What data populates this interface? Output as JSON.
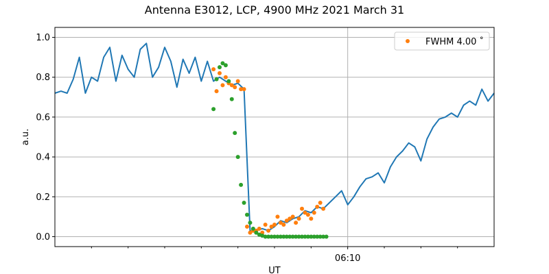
{
  "chart_data": {
    "type": "line",
    "title": "Antenna E3012, LCP, 4900 MHz 2021 March 31",
    "xlabel": "UT",
    "ylabel": "a.u.",
    "xlim": [
      "06:02:00",
      "06:14:00"
    ],
    "ylim": [
      -0.05,
      1.05
    ],
    "x_major_ticks": [
      {
        "value": "06:10:00",
        "label": "06:10"
      }
    ],
    "x_minor_ticks": [
      "06:03:00",
      "06:04:00",
      "06:05:00",
      "06:06:00",
      "06:07:00",
      "06:08:00",
      "06:09:00",
      "06:11:00",
      "06:12:00",
      "06:13:00"
    ],
    "y_ticks": [
      0.0,
      0.2,
      0.4,
      0.6,
      0.8,
      1.0
    ],
    "y_tick_labels": [
      "0.0",
      "0.2",
      "0.4",
      "0.6",
      "0.8",
      "1.0"
    ],
    "grid": "on (horizontal at y ticks, vertical at major x tick)",
    "legend": {
      "placement": "top-right",
      "entries": [
        {
          "label": "FWHM 4.00 ˚",
          "color": "#ff7f0e",
          "marker": "dot"
        }
      ]
    },
    "series": [
      {
        "style": "line",
        "color": "#1f77b4",
        "x": [
          "06:02:00",
          "06:02:10",
          "06:02:20",
          "06:02:30",
          "06:02:40",
          "06:02:50",
          "06:03:00",
          "06:03:10",
          "06:03:20",
          "06:03:30",
          "06:03:40",
          "06:03:50",
          "06:04:00",
          "06:04:10",
          "06:04:20",
          "06:04:30",
          "06:04:40",
          "06:04:50",
          "06:05:00",
          "06:05:10",
          "06:05:20",
          "06:05:30",
          "06:05:40",
          "06:05:50",
          "06:06:00",
          "06:06:10",
          "06:06:20",
          "06:06:30",
          "06:06:40",
          "06:06:50",
          "06:07:00",
          "06:07:10",
          "06:07:20",
          "06:07:30",
          "06:07:40",
          "06:07:50",
          "06:08:00",
          "06:08:10",
          "06:08:20",
          "06:08:30",
          "06:08:40",
          "06:08:50",
          "06:09:00",
          "06:09:10",
          "06:09:20",
          "06:09:30",
          "06:09:40",
          "06:09:50",
          "06:10:00",
          "06:10:10",
          "06:10:20",
          "06:10:30",
          "06:10:40",
          "06:10:50",
          "06:11:00",
          "06:11:10",
          "06:11:20",
          "06:11:30",
          "06:11:40",
          "06:11:50",
          "06:12:00",
          "06:12:10",
          "06:12:20",
          "06:12:30",
          "06:12:40",
          "06:12:50",
          "06:13:00",
          "06:13:10",
          "06:13:20",
          "06:13:30",
          "06:13:40",
          "06:13:50",
          "06:14:00"
        ],
        "values": [
          0.72,
          0.73,
          0.72,
          0.79,
          0.9,
          0.72,
          0.8,
          0.78,
          0.9,
          0.95,
          0.78,
          0.91,
          0.84,
          0.8,
          0.94,
          0.97,
          0.8,
          0.85,
          0.95,
          0.88,
          0.75,
          0.89,
          0.82,
          0.9,
          0.78,
          0.88,
          0.78,
          0.8,
          0.78,
          0.76,
          0.77,
          0.74,
          0.03,
          0.03,
          0.04,
          0.03,
          0.05,
          0.08,
          0.07,
          0.09,
          0.1,
          0.13,
          0.12,
          0.15,
          0.14,
          0.17,
          0.2,
          0.23,
          0.16,
          0.2,
          0.25,
          0.29,
          0.3,
          0.32,
          0.27,
          0.35,
          0.4,
          0.43,
          0.47,
          0.45,
          0.38,
          0.49,
          0.55,
          0.59,
          0.6,
          0.62,
          0.6,
          0.66,
          0.68,
          0.66,
          0.74,
          0.68,
          0.72
        ]
      },
      {
        "name": "FWHM 4.00 ˚",
        "style": "dots",
        "color": "#ff7f0e",
        "x": [
          "06:06:20",
          "06:06:25",
          "06:06:30",
          "06:06:35",
          "06:06:40",
          "06:06:45",
          "06:06:50",
          "06:06:55",
          "06:07:00",
          "06:07:05",
          "06:07:10",
          "06:07:15",
          "06:07:20",
          "06:07:25",
          "06:07:30",
          "06:07:35",
          "06:07:40",
          "06:07:45",
          "06:07:50",
          "06:07:55",
          "06:08:00",
          "06:08:05",
          "06:08:10",
          "06:08:15",
          "06:08:20",
          "06:08:25",
          "06:08:30",
          "06:08:35",
          "06:08:40",
          "06:08:45",
          "06:08:50",
          "06:08:55",
          "06:09:00",
          "06:09:05",
          "06:09:10",
          "06:09:15",
          "06:09:20"
        ],
        "values": [
          0.84,
          0.73,
          0.82,
          0.76,
          0.8,
          0.77,
          0.76,
          0.75,
          0.78,
          0.74,
          0.74,
          0.05,
          0.02,
          0.03,
          0.03,
          0.04,
          0.02,
          0.06,
          0.03,
          0.05,
          0.06,
          0.1,
          0.07,
          0.06,
          0.08,
          0.09,
          0.1,
          0.07,
          0.09,
          0.14,
          0.12,
          0.11,
          0.09,
          0.12,
          0.15,
          0.17,
          0.14
        ]
      },
      {
        "style": "dots",
        "color": "#2ca02c",
        "x": [
          "06:06:20",
          "06:06:25",
          "06:06:30",
          "06:06:35",
          "06:06:40",
          "06:06:45",
          "06:06:50",
          "06:06:55",
          "06:07:00",
          "06:07:05",
          "06:07:10",
          "06:07:15",
          "06:07:20",
          "06:07:25",
          "06:07:30",
          "06:07:35",
          "06:07:40",
          "06:07:45",
          "06:07:50",
          "06:07:55",
          "06:08:00",
          "06:08:05",
          "06:08:10",
          "06:08:15",
          "06:08:20",
          "06:08:25",
          "06:08:30",
          "06:08:35",
          "06:08:40",
          "06:08:45",
          "06:08:50",
          "06:08:55",
          "06:09:00",
          "06:09:05",
          "06:09:10",
          "06:09:15",
          "06:09:20",
          "06:09:25"
        ],
        "values": [
          0.64,
          0.79,
          0.85,
          0.87,
          0.86,
          0.78,
          0.69,
          0.52,
          0.4,
          0.26,
          0.17,
          0.11,
          0.07,
          0.04,
          0.02,
          0.01,
          0.005,
          0,
          0,
          0,
          0,
          0,
          0,
          0,
          0,
          0,
          0,
          0,
          0,
          0,
          0,
          0,
          0,
          0,
          0,
          0,
          0,
          0
        ]
      }
    ]
  }
}
